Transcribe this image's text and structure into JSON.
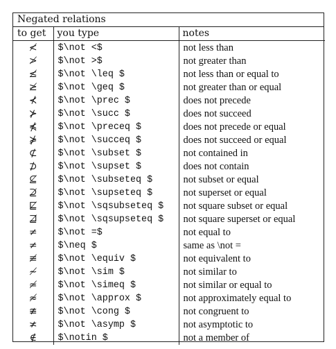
{
  "caption": "Negated relations",
  "headers": {
    "to_get": "to get",
    "you_type": "you type",
    "notes": "notes"
  },
  "rows": [
    {
      "symbol": "≮",
      "code": "$\\not <$",
      "note": "not less than"
    },
    {
      "symbol": "≯",
      "code": "$\\not >$",
      "note": "not greater than"
    },
    {
      "symbol": "≰",
      "code": "$\\not \\leq $",
      "note": "not less than or equal to"
    },
    {
      "symbol": "≱",
      "code": "$\\not \\geq $",
      "note": "not greater than or equal"
    },
    {
      "symbol": "⊀",
      "code": "$\\not \\prec $",
      "note": "does not precede"
    },
    {
      "symbol": "⊁",
      "code": "$\\not \\succ $",
      "note": "does not succeed"
    },
    {
      "symbol": "⋠",
      "code": "$\\not \\preceq $",
      "note": "does not precede or equal"
    },
    {
      "symbol": "⋡",
      "code": "$\\not \\succeq $",
      "note": "does not succeed or equal"
    },
    {
      "symbol": "⊄",
      "code": "$\\not \\subset $",
      "note": "not contained in"
    },
    {
      "symbol": "⊅",
      "code": "$\\not \\supset $",
      "note": "does not contain"
    },
    {
      "symbol": "⊈",
      "code": "$\\not \\subseteq $",
      "note": "not subset or equal"
    },
    {
      "symbol": "⊉",
      "code": "$\\not \\supseteq $",
      "note": "not superset or equal"
    },
    {
      "symbol": "⋢",
      "code": "$\\not \\sqsubseteq $",
      "note": "not square subset or equal"
    },
    {
      "symbol": "⋣",
      "code": "$\\not \\sqsupseteq $",
      "note": "not square superset or equal"
    },
    {
      "symbol": "≠",
      "code": "$\\not =$",
      "note": "not equal to"
    },
    {
      "symbol": "≠",
      "code": "$\\neq $",
      "note": "same as \\not ="
    },
    {
      "symbol": "≢",
      "code": "$\\not \\equiv $",
      "note": "not equivalent to"
    },
    {
      "symbol": "≁",
      "code": "$\\not \\sim $",
      "note": "not similar to"
    },
    {
      "symbol": "≄",
      "code": "$\\not \\simeq $",
      "note": "not similar or equal to"
    },
    {
      "symbol": "≉",
      "code": "$\\not \\approx $",
      "note": "not approximately equal to"
    },
    {
      "symbol": "≇",
      "code": "$\\not \\cong $",
      "note": "not congruent to"
    },
    {
      "symbol": "≭",
      "code": "$\\not \\asymp $",
      "note": "not asymptotic to"
    },
    {
      "symbol": "∉",
      "code": "$\\notin $",
      "note": "not a member of"
    }
  ]
}
